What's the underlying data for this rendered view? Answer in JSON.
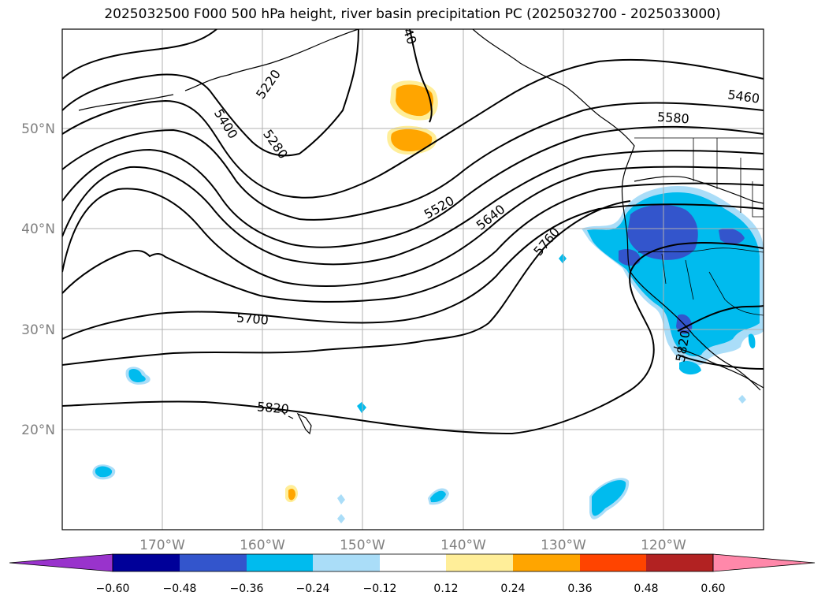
{
  "title": "2025032500 F000 500 hPa height, river basin precipitation PC (2025032700 - 2025033000)",
  "map": {
    "lon_labels": [
      "170°W",
      "160°W",
      "150°W",
      "140°W",
      "130°W",
      "120°W"
    ],
    "lat_labels": [
      "50°N",
      "40°N",
      "30°N",
      "20°N"
    ],
    "contour_labels": [
      "5220",
      "5400",
      "5280",
      "40",
      "5460",
      "5580",
      "5520",
      "5640",
      "5760",
      "5700",
      "5820",
      "5820"
    ],
    "contour_color": "#000000",
    "grid_color": "#b0b0b0"
  },
  "colorbar": {
    "tick_labels": [
      "−0.60",
      "−0.48",
      "−0.36",
      "−0.24",
      "−0.12",
      "0.12",
      "0.24",
      "0.36",
      "0.48",
      "0.60"
    ],
    "colors": [
      "#9933cc",
      "#000099",
      "#3355cc",
      "#00bbee",
      "#aaddf8",
      "#ffffff",
      "#ffee99",
      "#ffa500",
      "#ff4400",
      "#b22222",
      "#ff88aa"
    ]
  }
}
